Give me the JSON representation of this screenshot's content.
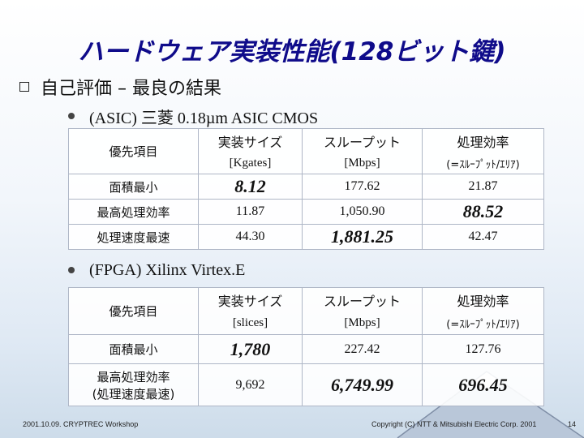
{
  "title": "ハードウェア実装性能(128ビット鍵)",
  "section": "自己評価 – 最良の結果",
  "asic": {
    "heading": "(ASIC) 三菱 0.18µm ASIC CMOS",
    "columns": [
      "優先項目",
      "実装サイズ",
      "スループット",
      "処理効率"
    ],
    "units": [
      "[Kgates]",
      "[Mbps]",
      "(=ｽﾙｰﾌﾟｯﾄ/ｴﾘｱ)"
    ],
    "rows": [
      {
        "label": "面積最小",
        "size": "8.12",
        "throughput": "177.62",
        "efficiency": "21.87"
      },
      {
        "label": "最高処理効率",
        "size": "11.87",
        "throughput": "1,050.90",
        "efficiency": "88.52"
      },
      {
        "label": "処理速度最速",
        "size": "44.30",
        "throughput": "1,881.25",
        "efficiency": "42.47"
      }
    ]
  },
  "fpga": {
    "heading": "(FPGA) Xilinx Virtex.E",
    "columns": [
      "優先項目",
      "実装サイズ",
      "スループット",
      "処理効率"
    ],
    "units": [
      "[slices]",
      "[Mbps]",
      "(=ｽﾙｰﾌﾟｯﾄ/ｴﾘｱ)"
    ],
    "rows": [
      {
        "label": "面積最小",
        "size": "1,780",
        "throughput": "227.42",
        "efficiency": "127.76"
      },
      {
        "label_line1": "最高処理効率",
        "label_line2": "(処理速度最速)",
        "size": "9,692",
        "throughput": "6,749.99",
        "efficiency": "696.45"
      }
    ]
  },
  "footer_left": "2001.10.09. CRYPTREC Workshop",
  "footer_right": "Copyright (C) NTT & Mitsubishi Electric Corp. 2001",
  "page_number": "14",
  "colors": {
    "title": "#0f0b8a",
    "highlight": "#8a1414"
  }
}
